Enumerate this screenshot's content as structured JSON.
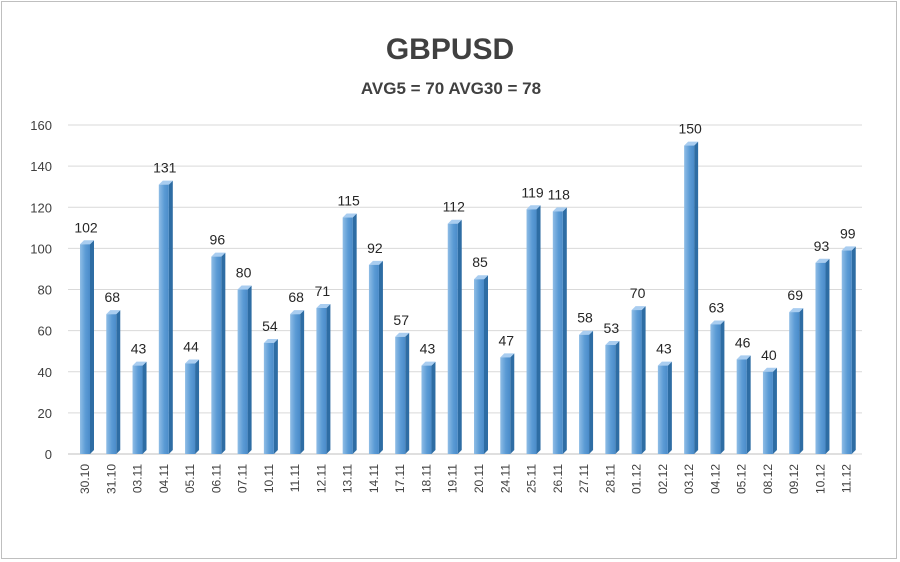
{
  "chart_data": {
    "type": "bar",
    "title": "GBPUSD",
    "subtitle": "AVG5 = 70 AVG30 = 78",
    "xlabel": "",
    "ylabel": "",
    "ylim": [
      0,
      160
    ],
    "yticks": [
      0,
      20,
      40,
      60,
      80,
      100,
      120,
      140,
      160
    ],
    "grid": true,
    "legend": "none",
    "categories": [
      "30.10",
      "31.10",
      "03.11",
      "04.11",
      "05.11",
      "06.11",
      "07.11",
      "10.11",
      "11.11",
      "12.11",
      "13.11",
      "14.11",
      "17.11",
      "18.11",
      "19.11",
      "20.11",
      "24.11",
      "25.11",
      "26.11",
      "27.11",
      "28.11",
      "01.12",
      "02.12",
      "03.12",
      "04.12",
      "05.12",
      "08.12",
      "09.12",
      "10.12",
      "11.12"
    ],
    "values": [
      102,
      68,
      43,
      131,
      44,
      96,
      80,
      54,
      68,
      71,
      115,
      92,
      57,
      43,
      112,
      85,
      47,
      119,
      118,
      58,
      53,
      70,
      43,
      150,
      63,
      46,
      40,
      69,
      93,
      99
    ],
    "colors": {
      "bar_front": "#5b9bd5",
      "bar_light": "#8fbde6",
      "bar_side": "#2e6da4",
      "bar_top": "#a9cdf0"
    }
  }
}
